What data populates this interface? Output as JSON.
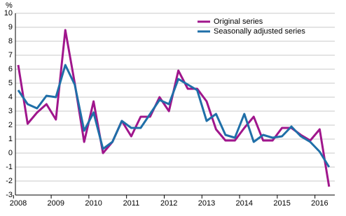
{
  "chart_data": {
    "type": "line",
    "y_label": "%",
    "categories": [
      "2008",
      null,
      null,
      null,
      "2009",
      null,
      null,
      null,
      "2010",
      null,
      null,
      null,
      "2011",
      null,
      null,
      null,
      "2012",
      null,
      null,
      null,
      "2013",
      null,
      null,
      null,
      "2014",
      null,
      null,
      null,
      "2015",
      null,
      null,
      null,
      "2016",
      null
    ],
    "series": [
      {
        "name": "Original series",
        "color": "#a0168c",
        "values": [
          6.3,
          2.1,
          2.9,
          3.5,
          2.4,
          8.8,
          5.0,
          0.8,
          3.7,
          0.0,
          0.8,
          2.3,
          1.2,
          2.6,
          2.6,
          4.0,
          3.0,
          5.9,
          4.6,
          4.6,
          3.7,
          1.7,
          0.9,
          0.9,
          1.8,
          2.6,
          0.9,
          0.9,
          1.8,
          1.8,
          1.3,
          0.9,
          1.7,
          -2.4
        ]
      },
      {
        "name": "Seasonally adjusted series",
        "color": "#1f6fa8",
        "values": [
          4.5,
          3.5,
          3.2,
          4.1,
          4.0,
          6.3,
          4.9,
          1.6,
          2.9,
          0.3,
          0.8,
          2.3,
          1.8,
          1.8,
          2.8,
          3.8,
          3.5,
          5.3,
          4.9,
          4.5,
          2.3,
          2.8,
          1.3,
          1.1,
          2.8,
          0.8,
          1.3,
          1.1,
          1.2,
          1.9,
          1.2,
          0.8,
          0.1,
          -1.0
        ]
      }
    ],
    "ylim": [
      -3,
      10
    ],
    "yticks": [
      -3,
      -2,
      -1,
      0,
      1,
      2,
      3,
      4,
      5,
      6,
      7,
      8,
      9,
      10
    ],
    "grid": true,
    "legend": "top-right"
  }
}
